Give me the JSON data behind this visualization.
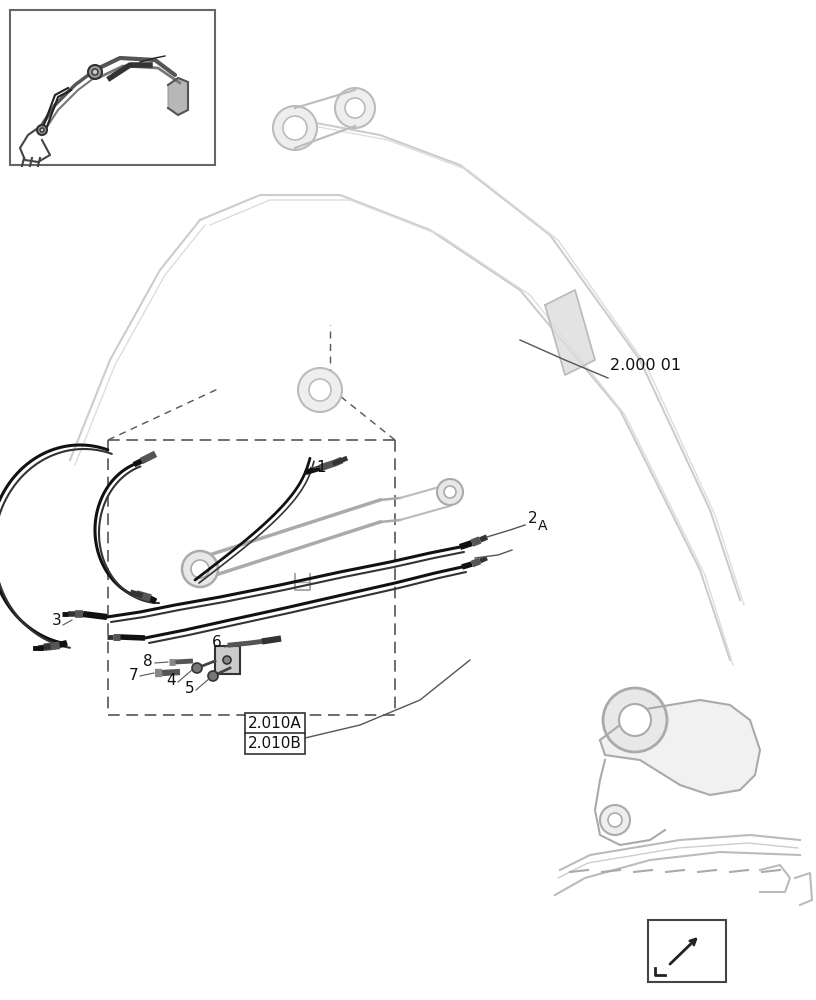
{
  "bg_color": "#ffffff",
  "lc": "#444444",
  "lc_light": "#aaaaaa",
  "lc_dark": "#222222",
  "fig_width": 8.16,
  "fig_height": 10.0,
  "dpi": 100,
  "label_2_000_01": "2.000 01",
  "label_2_010A": "2.010A",
  "label_2_010B": "2.010B"
}
